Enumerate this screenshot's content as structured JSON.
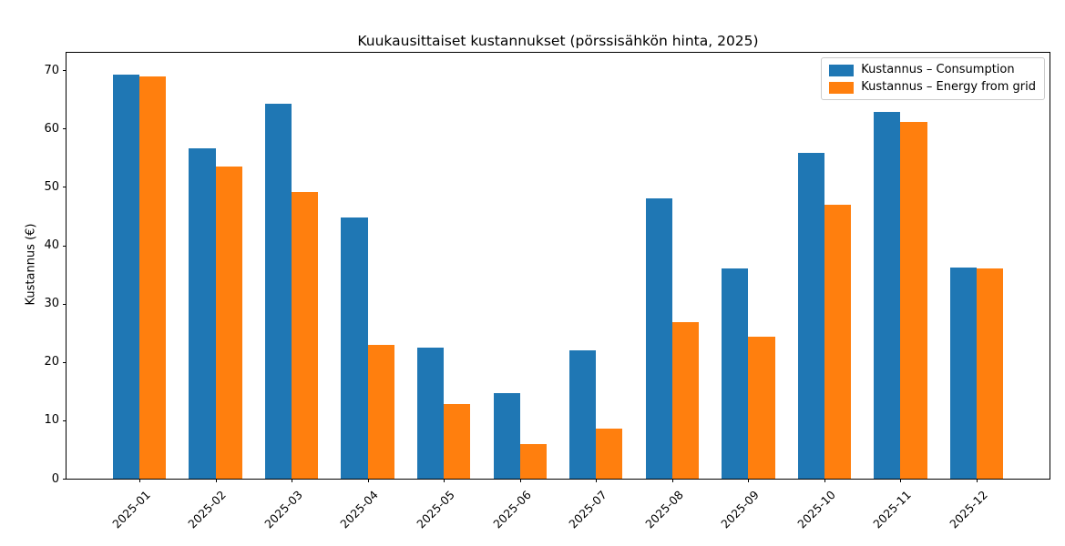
{
  "chart_data": {
    "type": "bar",
    "title": "Kuukausittaiset kustannukset (pörssisähkön hinta, 2025)",
    "xlabel": "",
    "ylabel": "Kustannus (€)",
    "categories": [
      "2025-01",
      "2025-02",
      "2025-03",
      "2025-04",
      "2025-05",
      "2025-06",
      "2025-07",
      "2025-08",
      "2025-09",
      "2025-10",
      "2025-11",
      "2025-12"
    ],
    "series": [
      {
        "name": "Kustannus – Consumption",
        "color": "#1f77b4",
        "values": [
          69.3,
          56.6,
          64.2,
          44.8,
          22.5,
          14.7,
          22.0,
          48.0,
          36.0,
          55.9,
          62.8,
          36.2
        ]
      },
      {
        "name": "Kustannus – Energy from grid",
        "color": "#ff7f0e",
        "values": [
          68.9,
          53.5,
          49.2,
          23.0,
          12.8,
          6.0,
          8.6,
          26.9,
          24.3,
          47.0,
          61.2,
          36.0
        ]
      }
    ],
    "yticks": [
      0,
      10,
      20,
      30,
      40,
      50,
      60,
      70
    ],
    "ylim": [
      0,
      73
    ],
    "xlim": [
      -0.96,
      11.96
    ],
    "bar_width": 0.35,
    "grid": false,
    "legend_position": "upper right",
    "xtick_rotation_deg": 45
  }
}
